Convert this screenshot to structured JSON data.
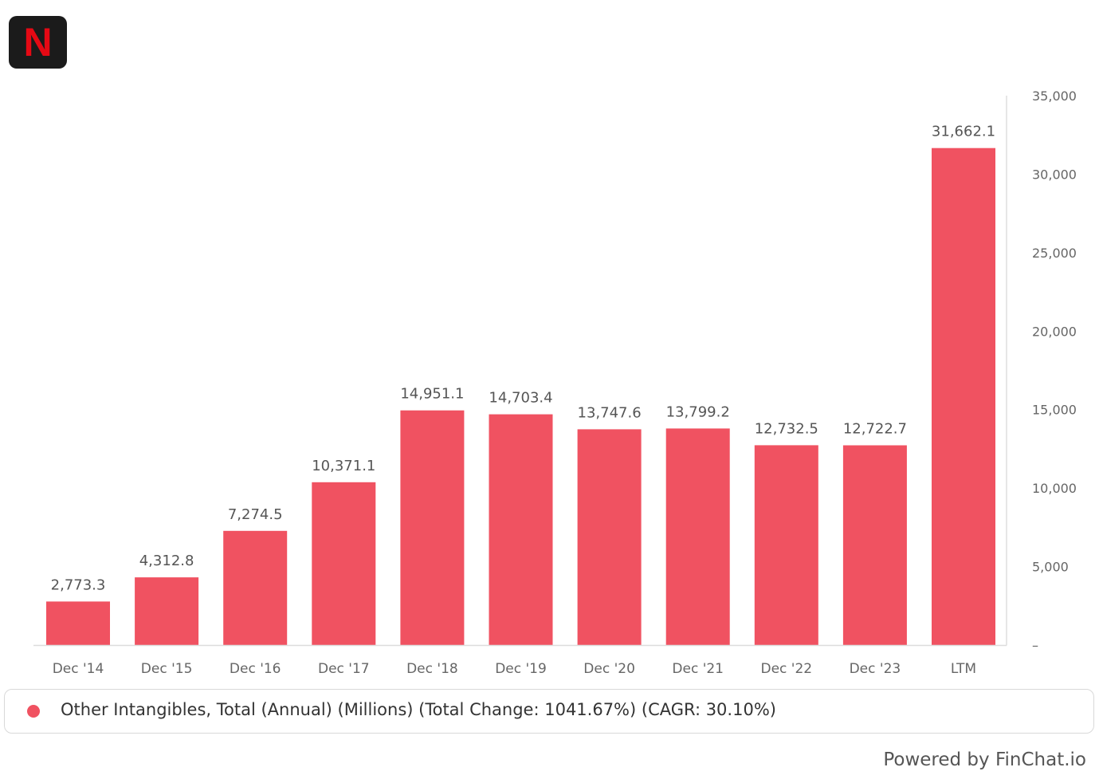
{
  "logo": {
    "letter": "N",
    "icon": "netflix-logo-icon"
  },
  "colors": {
    "bar": "#f05261",
    "axis_text": "#666666",
    "value_label": "#555555",
    "grid_axis": "#dddddd"
  },
  "chart_data": {
    "type": "bar",
    "categories": [
      "Dec '14",
      "Dec '15",
      "Dec '16",
      "Dec '17",
      "Dec '18",
      "Dec '19",
      "Dec '20",
      "Dec '21",
      "Dec '22",
      "Dec '23",
      "LTM"
    ],
    "series": [
      {
        "name": "Other Intangibles, Total (Annual) (Millions) (Total Change: 1041.67%) (CAGR: 30.10%)",
        "values": [
          2773.3,
          4312.8,
          7274.5,
          10371.1,
          14951.1,
          14703.4,
          13747.6,
          13799.2,
          12732.5,
          12722.7,
          31662.1
        ],
        "labels": [
          "2,773.3",
          "4,312.8",
          "7,274.5",
          "10,371.1",
          "14,951.1",
          "14,703.4",
          "13,747.6",
          "13,799.2",
          "12,732.5",
          "12,722.7",
          "31,662.1"
        ]
      }
    ],
    "ylim": [
      0,
      35000
    ],
    "yticks": [
      0,
      5000,
      10000,
      15000,
      20000,
      25000,
      30000,
      35000
    ],
    "ytick_labels": [
      "–",
      "5,000",
      "10,000",
      "15,000",
      "20,000",
      "25,000",
      "30,000",
      "35,000"
    ],
    "y_axis_position": "right",
    "grid": false,
    "legend_position": "bottom"
  },
  "legend": {
    "text": "Other Intangibles, Total (Annual) (Millions) (Total Change: 1041.67%) (CAGR: 30.10%)"
  },
  "footer": {
    "powered_by": "Powered by FinChat.io"
  }
}
